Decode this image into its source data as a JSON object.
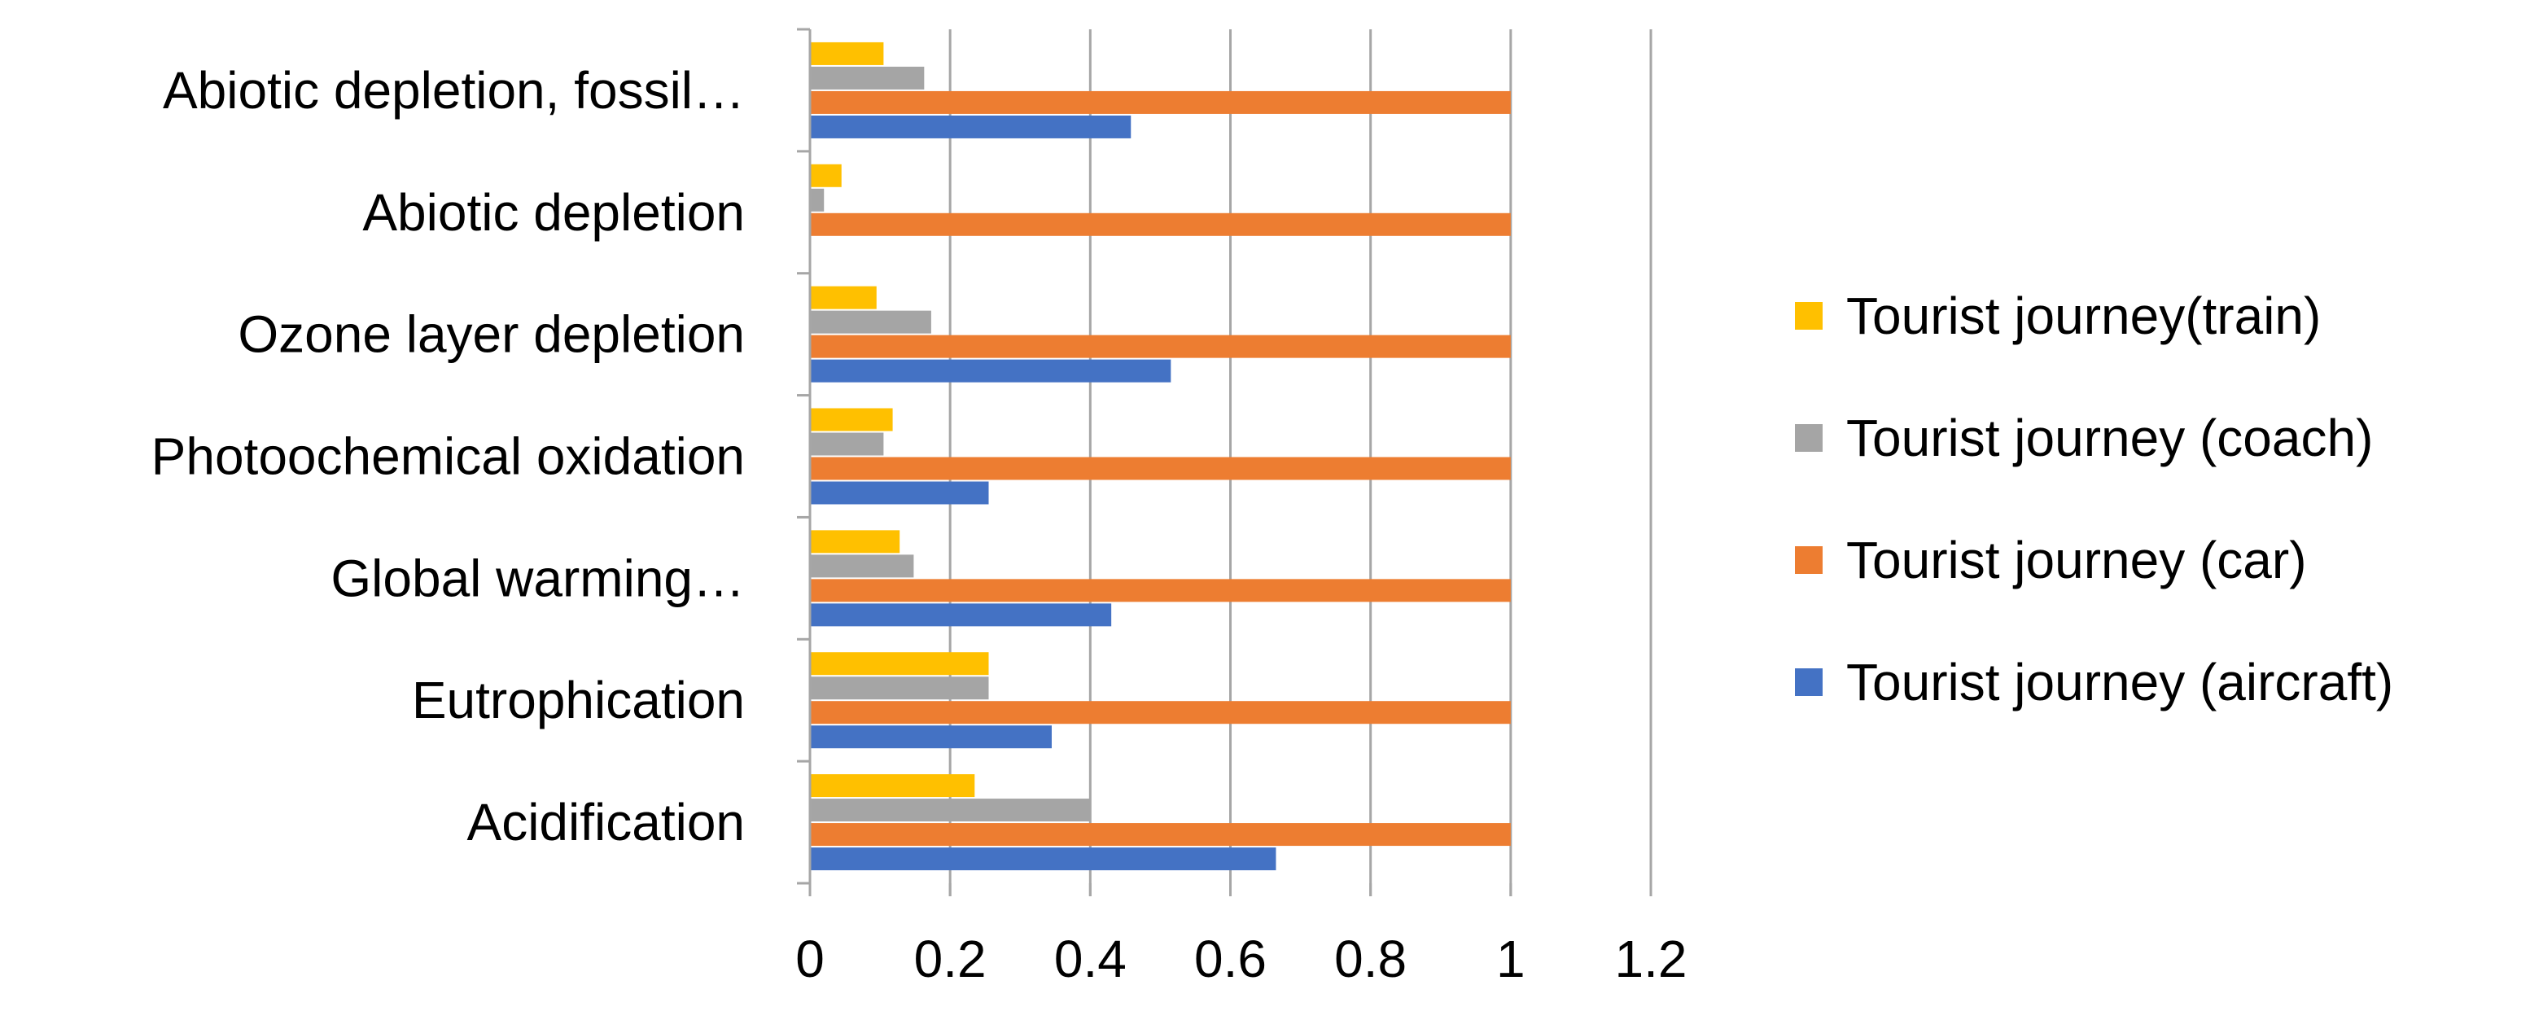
{
  "chart_data": {
    "type": "bar",
    "orientation": "horizontal",
    "title": "",
    "xlabel": "",
    "ylabel": "",
    "categories": [
      "Acidification",
      "Eutrophication",
      "Global warming…",
      "Photoochemical oxidation",
      "Ozone layer depletion",
      "Abiotic depletion",
      "Abiotic depletion, fossil…"
    ],
    "series": [
      {
        "name": "Tourist journey (aircraft)",
        "color": "#4472C4",
        "values": [
          0.665,
          0.345,
          0.43,
          0.255,
          0.515,
          0,
          0.458
        ]
      },
      {
        "name": "Tourist journey (car)",
        "color": "#ED7D31",
        "values": [
          1,
          1,
          1,
          1,
          1,
          1,
          1
        ]
      },
      {
        "name": "Tourist journey (coach)",
        "color": "#A5A5A5",
        "values": [
          0.4,
          0.255,
          0.148,
          0.105,
          0.173,
          0.02,
          0.163
        ]
      },
      {
        "name": "Tourist journey(train)",
        "color": "#FFC000",
        "values": [
          0.235,
          0.255,
          0.128,
          0.118,
          0.095,
          0.045,
          0.105
        ]
      }
    ],
    "xlim": [
      0,
      1.2
    ],
    "x_ticks": [
      "0",
      "0.2",
      "0.4",
      "0.6",
      "0.8",
      "1",
      "1.2"
    ],
    "x_tick_values": [
      0,
      0.2,
      0.4,
      0.6,
      0.8,
      1,
      1.2
    ],
    "grid": "vertical major gridlines",
    "grid_color": "#A6A6A6",
    "legend_position": "right",
    "legend_order": [
      3,
      2,
      1,
      0
    ]
  }
}
